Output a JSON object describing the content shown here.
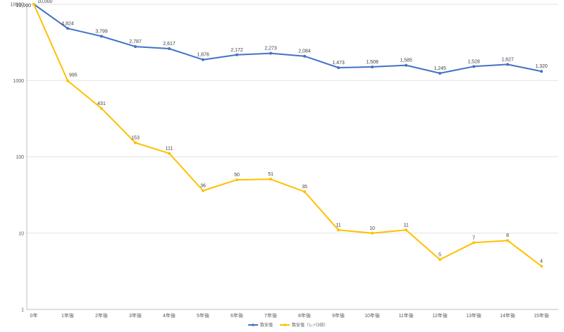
{
  "chart_data": {
    "type": "line",
    "title": "",
    "xlabel": "",
    "ylabel": "",
    "y_scale": "log",
    "ylim": [
      1,
      10000
    ],
    "y_ticks": [
      "1",
      "10",
      "100",
      "1000",
      "10000"
    ],
    "grid": true,
    "legend_position": "bottom",
    "categories": [
      "0年",
      "1年後",
      "2年後",
      "3年後",
      "4年後",
      "5年後",
      "6年後",
      "7年後",
      "8年後",
      "9年後",
      "10年後",
      "11年後",
      "12年後",
      "13年後",
      "14年後",
      "15年後"
    ],
    "series": [
      {
        "name": "数安值",
        "color": "#4472C4",
        "values": [
          10000,
          4824,
          3799,
          2787,
          2617,
          1876,
          2172,
          2273,
          2084,
          1473,
          1508,
          1585,
          1245,
          1528,
          1627,
          1320
        ],
        "labels": [
          "10,000",
          "4,824",
          "3,799",
          "2,787",
          "2,617",
          "1,876",
          "2,172",
          "2,273",
          "2,084",
          "1,473",
          "1,508",
          "1,585",
          "1,245",
          "1,528",
          "1,627",
          "1,320"
        ]
      },
      {
        "name": "数安值（レバ3倍）",
        "color": "#FFC000",
        "values": [
          10000,
          995,
          431,
          153,
          111,
          36,
          50,
          51,
          35,
          11,
          10,
          11,
          4.5,
          7.5,
          8,
          3.7
        ],
        "labels": [
          "10,000",
          "995",
          "431",
          "153",
          "111",
          "36",
          "50",
          "51",
          "35",
          "11",
          "10",
          "11",
          "5",
          "7",
          "8",
          "4"
        ]
      }
    ]
  }
}
